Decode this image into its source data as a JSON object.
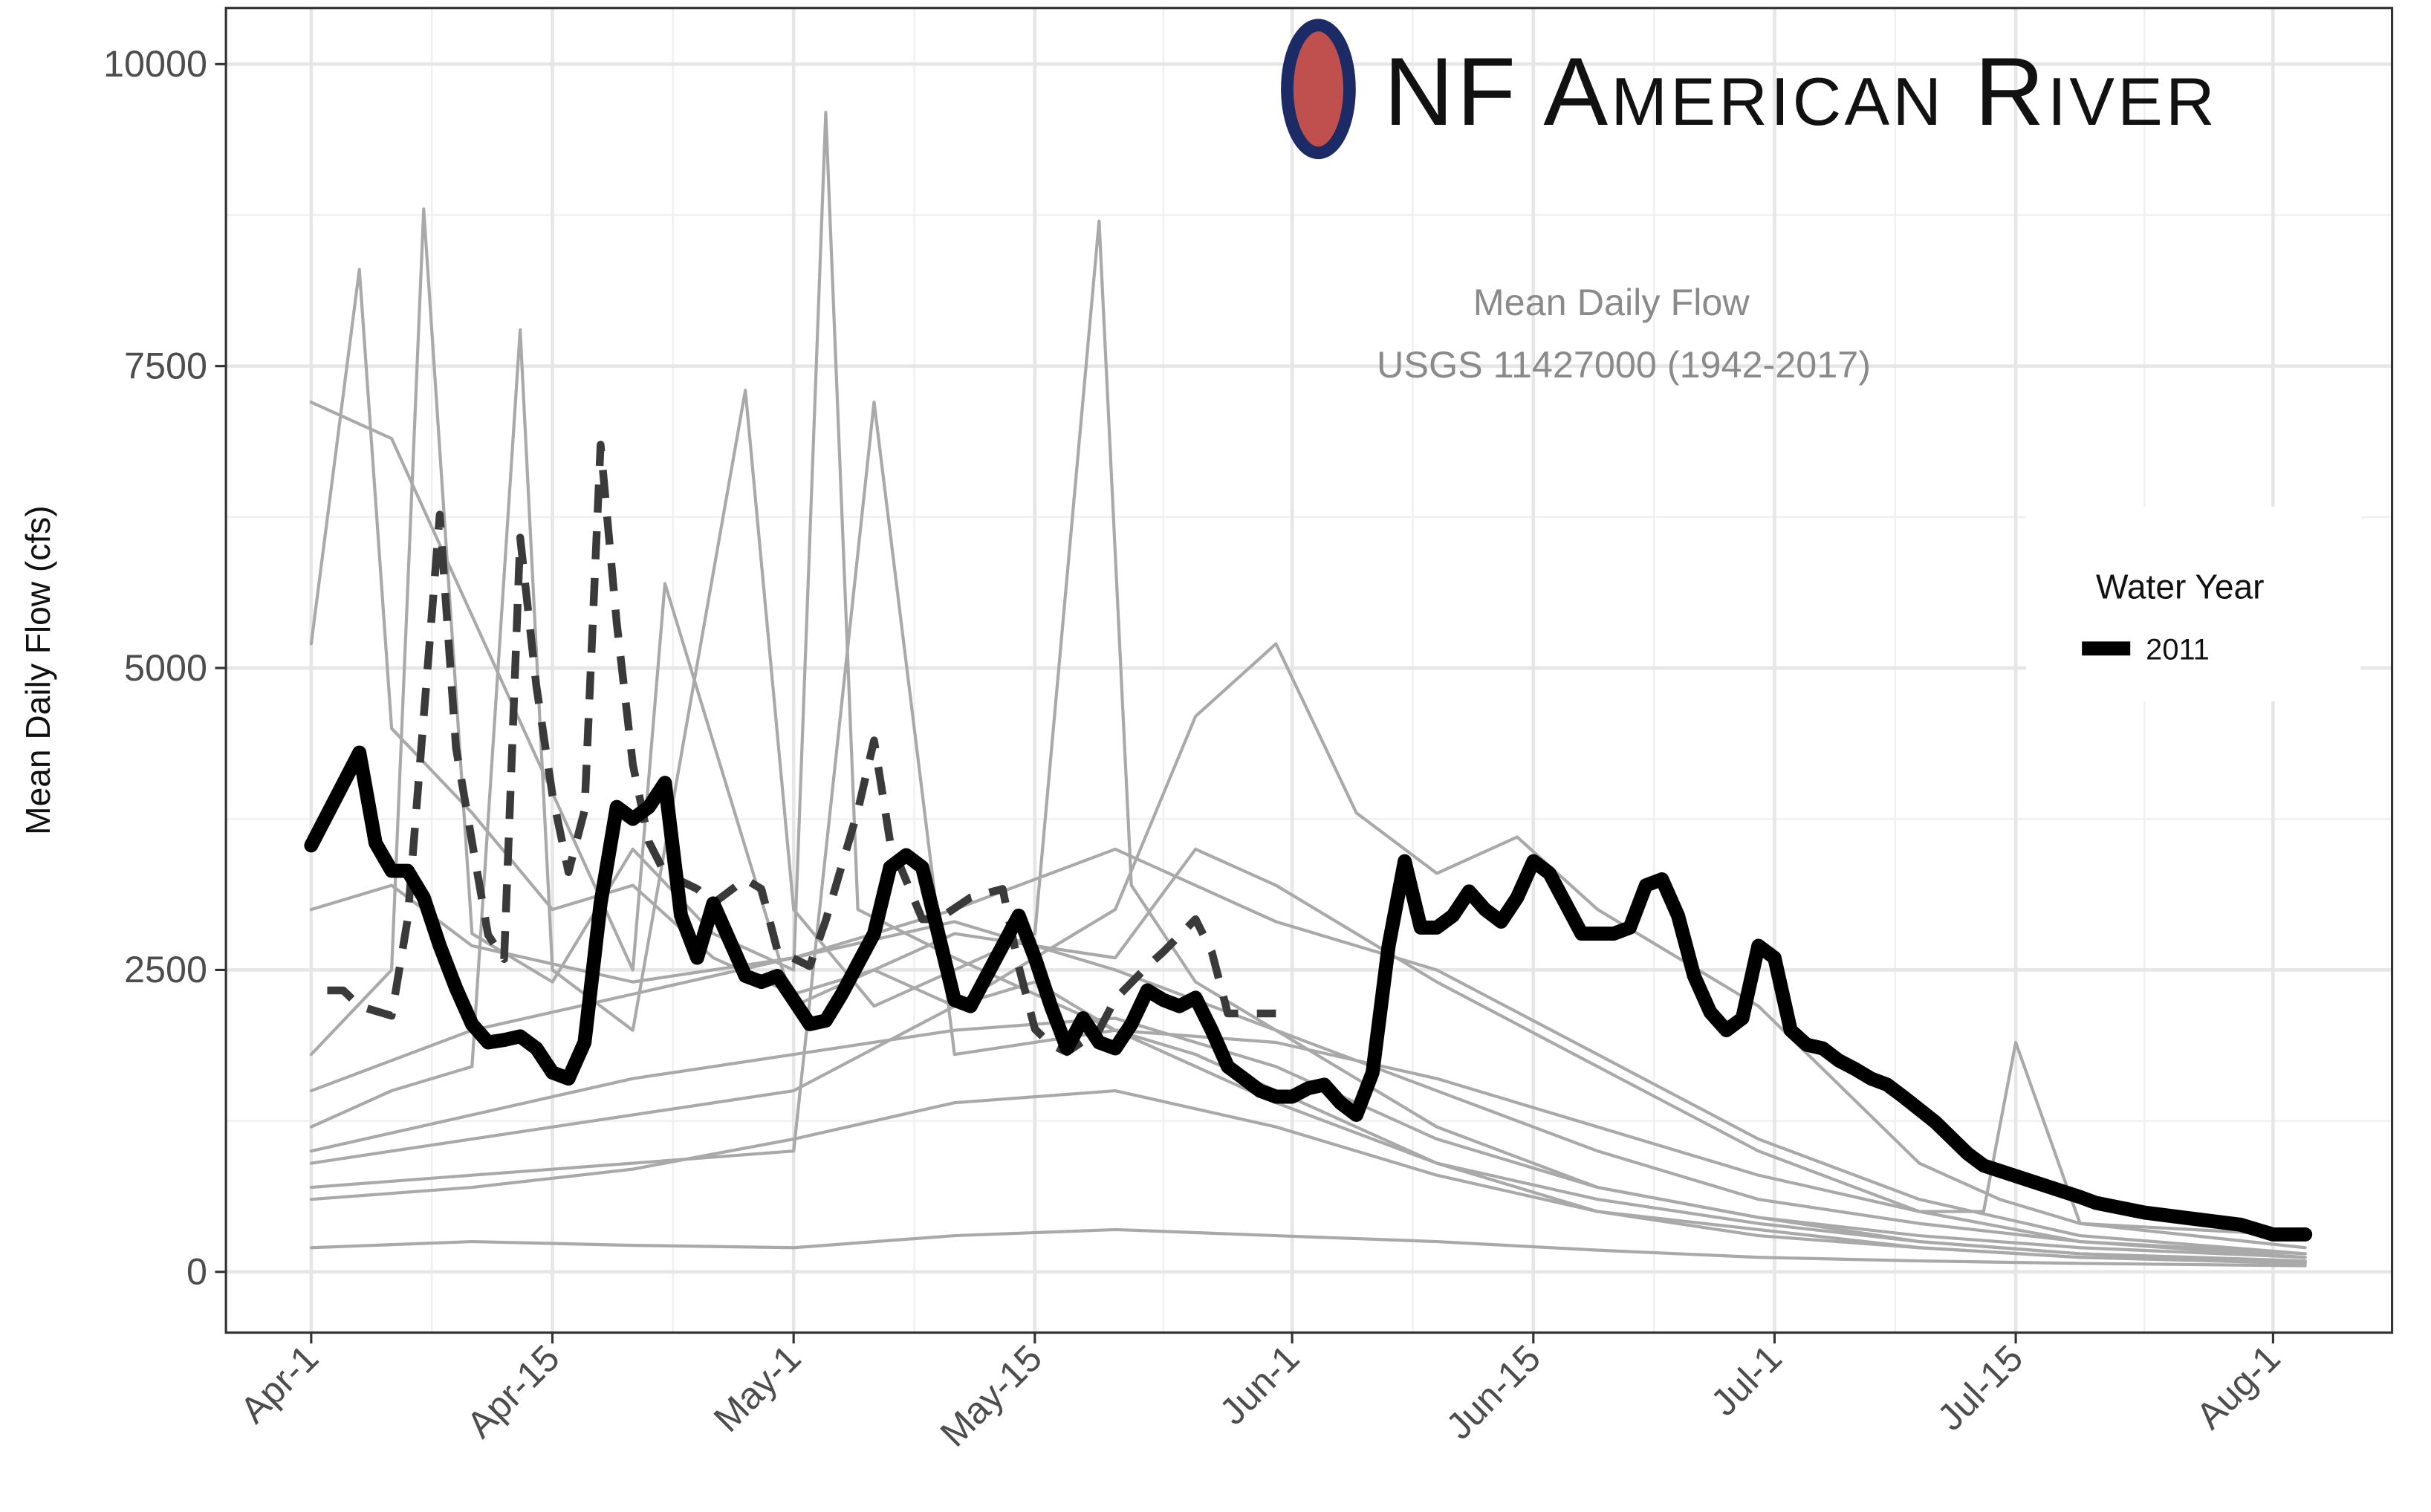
{
  "chart_data": {
    "type": "line",
    "title": "NF American River",
    "subtitle": [
      "Mean Daily Flow",
      "USGS 11427000 (1942-2017)"
    ],
    "y_label": "Mean Daily Flow (cfs)",
    "legend_title": "Water Year",
    "legend_position": "right",
    "grid": true,
    "xlim": [
      -5.3,
      129.4
    ],
    "ylim": [
      -503,
      10465
    ],
    "xticks": [
      {
        "value": 0,
        "label": "Apr-1"
      },
      {
        "value": 15,
        "label": "Apr-15"
      },
      {
        "value": 30,
        "label": "May-1"
      },
      {
        "value": 45,
        "label": "May-15"
      },
      {
        "value": 61,
        "label": "Jun-1"
      },
      {
        "value": 76,
        "label": "Jun-15"
      },
      {
        "value": 91,
        "label": "Jul-1"
      },
      {
        "value": 106,
        "label": "Jul-15"
      },
      {
        "value": 122,
        "label": "Aug-1"
      }
    ],
    "yticks": [
      0,
      2500,
      5000,
      7500,
      10000
    ],
    "series": [
      {
        "color": "#a9a9a9",
        "linestyle": "solid",
        "x": [
          0,
          3,
          5,
          10,
          15,
          20,
          25,
          30,
          35,
          40,
          45,
          50,
          55,
          60,
          70,
          80,
          90,
          100,
          110,
          124
        ],
        "values": [
          5200,
          8300,
          4500,
          3800,
          3000,
          3200,
          2600,
          2300,
          2500,
          2200,
          2400,
          2000,
          1800,
          1500,
          900,
          600,
          400,
          250,
          150,
          80
        ]
      },
      {
        "color": "#a9a9a9",
        "linestyle": "solid",
        "x": [
          0,
          5,
          7,
          10,
          15,
          20,
          25,
          30,
          32,
          34,
          40,
          45,
          50,
          60,
          70,
          80,
          90,
          100,
          110,
          124
        ],
        "values": [
          1800,
          2500,
          8800,
          2800,
          2400,
          3500,
          2800,
          2500,
          9600,
          3000,
          2600,
          2300,
          2000,
          1400,
          900,
          500,
          300,
          200,
          120,
          70
        ]
      },
      {
        "color": "#a9a9a9",
        "linestyle": "solid",
        "x": [
          0,
          5,
          10,
          13,
          15,
          20,
          27,
          30,
          35,
          40,
          45,
          49,
          51,
          55,
          60,
          70,
          80,
          90,
          100,
          110,
          124
        ],
        "values": [
          1200,
          1500,
          1700,
          7800,
          2500,
          2000,
          7300,
          3000,
          2200,
          2500,
          2800,
          8700,
          3200,
          2400,
          2000,
          1200,
          700,
          450,
          250,
          150,
          90
        ]
      },
      {
        "color": "#a9a9a9",
        "linestyle": "solid",
        "x": [
          0,
          10,
          20,
          30,
          40,
          50,
          55,
          60,
          65,
          70,
          75,
          80,
          90,
          100,
          105,
          110,
          124
        ],
        "values": [
          900,
          1100,
          1300,
          1500,
          2200,
          3000,
          4600,
          5200,
          3800,
          3300,
          3600,
          3000,
          2200,
          900,
          600,
          400,
          300
        ]
      },
      {
        "color": "#a9a9a9",
        "linestyle": "solid",
        "x": [
          0,
          10,
          20,
          30,
          35,
          40,
          50,
          60,
          70,
          80,
          90,
          100,
          104,
          106,
          110,
          124
        ],
        "values": [
          700,
          800,
          900,
          1000,
          7200,
          1800,
          2000,
          1900,
          1600,
          1200,
          800,
          500,
          500,
          1900,
          400,
          200
        ]
      },
      {
        "color": "#a9a9a9",
        "linestyle": "solid",
        "x": [
          0,
          10,
          20,
          30,
          40,
          50,
          60,
          70,
          80,
          90,
          100,
          110,
          124
        ],
        "values": [
          200,
          250,
          220,
          200,
          300,
          350,
          300,
          250,
          180,
          120,
          90,
          70,
          50
        ]
      },
      {
        "color": "#a9a9a9",
        "linestyle": "solid",
        "x": [
          0,
          10,
          20,
          30,
          40,
          50,
          60,
          70,
          80,
          90,
          100,
          110,
          124
        ],
        "values": [
          1000,
          1300,
          1600,
          1800,
          2000,
          2100,
          1700,
          1100,
          700,
          450,
          300,
          200,
          120
        ]
      },
      {
        "color": "#a9a9a9",
        "linestyle": "solid",
        "x": [
          0,
          5,
          10,
          20,
          30,
          40,
          50,
          60,
          70,
          80,
          90,
          100,
          110,
          124
        ],
        "values": [
          3000,
          3200,
          2700,
          2400,
          2600,
          3000,
          3500,
          2900,
          2500,
          1800,
          1100,
          600,
          300,
          150
        ]
      },
      {
        "color": "#a9a9a9",
        "linestyle": "solid",
        "x": [
          0,
          10,
          20,
          30,
          40,
          50,
          60,
          70,
          80,
          90,
          100,
          110,
          124
        ],
        "values": [
          600,
          700,
          850,
          1100,
          1400,
          1500,
          1200,
          800,
          500,
          350,
          200,
          120,
          80
        ]
      },
      {
        "color": "#a9a9a9",
        "linestyle": "solid",
        "x": [
          0,
          10,
          20,
          30,
          40,
          50,
          60,
          70,
          80,
          90,
          100,
          110,
          124
        ],
        "values": [
          1500,
          2000,
          2300,
          2600,
          2900,
          2500,
          2000,
          1500,
          1000,
          600,
          400,
          250,
          150
        ]
      },
      {
        "color": "#a9a9a9",
        "linestyle": "solid",
        "x": [
          0,
          5,
          20,
          22,
          30,
          40,
          50,
          55,
          60,
          70,
          80,
          90,
          100,
          110,
          124
        ],
        "values": [
          7200,
          6900,
          2500,
          5700,
          2200,
          2800,
          2600,
          3500,
          3200,
          2400,
          1700,
          1000,
          500,
          250,
          120
        ]
      },
      {
        "color": "#3a3a3a",
        "linestyle": "dashed",
        "x": [
          1,
          2,
          3,
          5,
          6,
          8,
          9,
          10,
          11,
          12,
          13,
          14,
          15,
          16,
          17,
          18,
          19,
          20,
          21,
          22,
          24,
          25,
          27,
          28,
          29,
          31,
          32,
          34,
          35,
          36,
          38,
          39,
          41,
          43,
          44,
          45,
          46,
          47,
          49,
          50,
          52,
          53,
          55,
          56,
          57,
          59,
          60
        ],
        "values": [
          2330,
          2330,
          2200,
          2120,
          2920,
          6270,
          4340,
          3560,
          2790,
          2590,
          6080,
          4850,
          3950,
          3310,
          3820,
          6850,
          5370,
          4200,
          3560,
          3300,
          3170,
          3050,
          3250,
          3170,
          2660,
          2530,
          2910,
          3820,
          4400,
          3560,
          2920,
          2920,
          3100,
          3170,
          2530,
          2010,
          1880,
          1820,
          2000,
          2260,
          2530,
          2650,
          2920,
          2650,
          2140,
          2140,
          2140
        ]
      },
      {
        "name": "2011",
        "color": "#000000",
        "linestyle": "solid",
        "x": [
          0,
          3,
          4,
          5,
          6,
          7,
          8,
          9,
          10,
          11,
          12,
          13,
          14,
          15,
          16,
          17,
          18,
          19,
          20,
          21,
          22,
          23,
          24,
          25,
          26,
          27,
          28,
          29,
          30,
          31,
          32,
          33,
          34,
          35,
          36,
          37,
          38,
          39,
          40,
          41,
          42,
          43,
          44,
          45,
          46,
          47,
          48,
          49,
          50,
          51,
          52,
          53,
          54,
          55,
          56,
          57,
          58,
          59,
          60,
          61,
          62,
          63,
          64,
          65,
          66,
          67,
          68,
          69,
          70,
          71,
          72,
          73,
          74,
          75,
          76,
          77,
          78,
          79,
          80,
          81,
          82,
          83,
          84,
          85,
          86,
          87,
          88,
          89,
          90,
          91,
          92,
          93,
          94,
          95,
          96,
          97,
          98,
          99,
          101,
          103,
          104,
          107,
          110,
          111,
          114,
          117,
          120,
          122,
          124
        ],
        "values": [
          3530,
          4300,
          3550,
          3320,
          3320,
          3100,
          2700,
          2350,
          2050,
          1900,
          1920,
          1950,
          1850,
          1650,
          1600,
          1900,
          3050,
          3850,
          3750,
          3850,
          4050,
          2950,
          2600,
          3050,
          2750,
          2450,
          2400,
          2450,
          2250,
          2050,
          2080,
          2300,
          2550,
          2800,
          3350,
          3450,
          3350,
          2800,
          2250,
          2200,
          2450,
          2700,
          2950,
          2600,
          2200,
          1850,
          2100,
          1900,
          1850,
          2050,
          2330,
          2250,
          2200,
          2270,
          2000,
          1700,
          1600,
          1500,
          1450,
          1450,
          1520,
          1550,
          1400,
          1300,
          1650,
          2700,
          3400,
          2850,
          2850,
          2950,
          3150,
          3000,
          2900,
          3100,
          3400,
          3300,
          3050,
          2800,
          2800,
          2800,
          2850,
          3200,
          3250,
          2950,
          2450,
          2150,
          2000,
          2100,
          2700,
          2600,
          2000,
          1880,
          1850,
          1750,
          1680,
          1600,
          1550,
          1450,
          1240,
          980,
          880,
          750,
          620,
          570,
          490,
          440,
          390,
          310,
          310
        ]
      }
    ]
  }
}
